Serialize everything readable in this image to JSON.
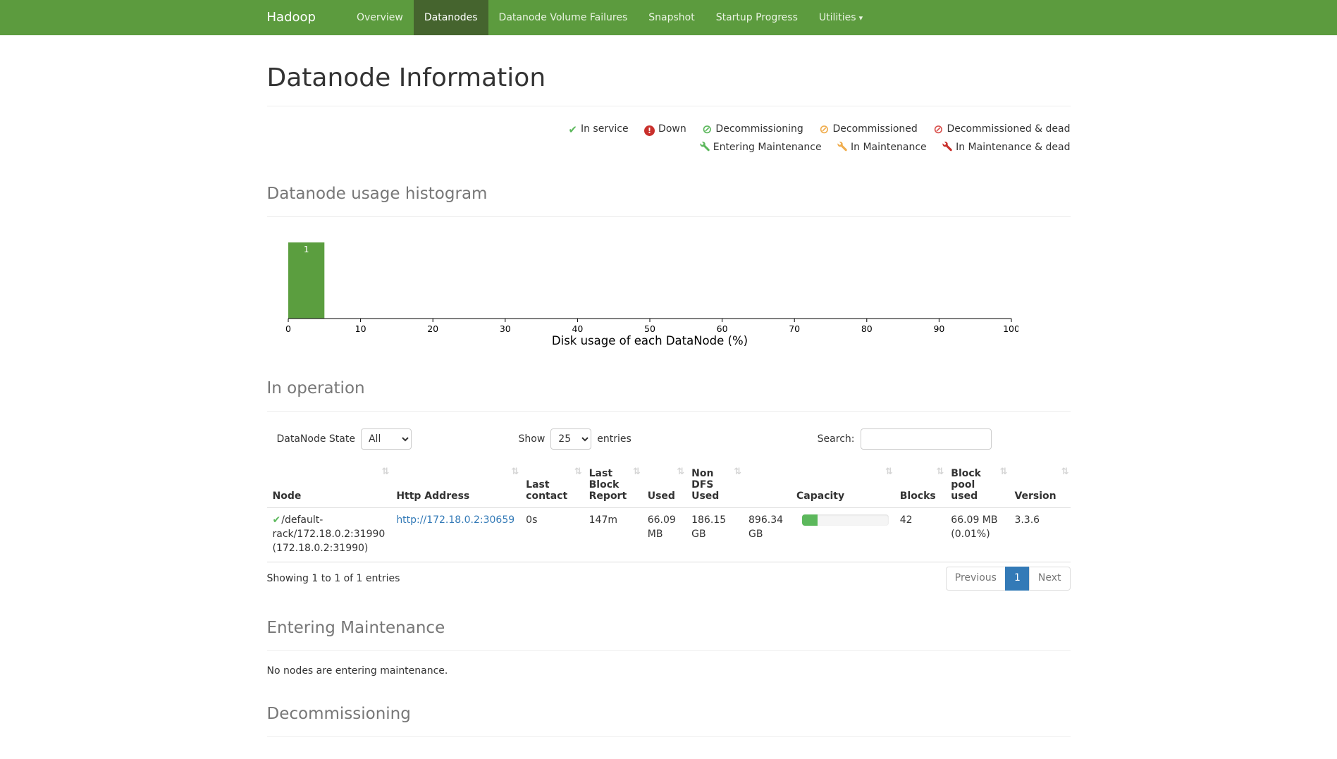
{
  "colors": {
    "navbar_bg": "#5c9b3e",
    "navbar_active_bg": "#45642e",
    "link": "#337ab7",
    "status_green": "#5cb85c",
    "status_orange": "#f0ad4e",
    "status_red": "#d9534f",
    "status_crimson": "#c9302c",
    "bar_green": "#5b9e3f"
  },
  "icons": {
    "check": "✔",
    "caret": "▾",
    "banned": "⊘",
    "sort": "⇅",
    "exclamation": "!"
  },
  "navbar": {
    "brand": "Hadoop",
    "items": [
      {
        "label": "Overview"
      },
      {
        "label": "Datanodes",
        "active": true
      },
      {
        "label": "Datanode Volume Failures"
      },
      {
        "label": "Snapshot"
      },
      {
        "label": "Startup Progress"
      },
      {
        "label": "Utilities",
        "dropdown": true
      }
    ]
  },
  "page": {
    "title": "Datanode Information"
  },
  "legend": {
    "row1": [
      {
        "icon": "check",
        "label": "In service"
      },
      {
        "icon": "exclamation-circle",
        "label": "Down"
      },
      {
        "icon": "banned-circle-green",
        "label": "Decommissioning"
      },
      {
        "icon": "banned-circle-orange",
        "label": "Decommissioned"
      },
      {
        "icon": "banned-circle-red",
        "label": "Decommissioned & dead"
      }
    ],
    "row2": [
      {
        "icon": "wrench-green",
        "label": "Entering Maintenance"
      },
      {
        "icon": "wrench-orange",
        "label": "In Maintenance"
      },
      {
        "icon": "wrench-red",
        "label": "In Maintenance & dead"
      }
    ]
  },
  "histogram_section": {
    "heading": "Datanode usage histogram"
  },
  "chart_data": {
    "type": "bar",
    "title": "Datanode usage histogram",
    "xlabel": "Disk usage of each DataNode (%)",
    "ylabel": "",
    "xlim": [
      0,
      100
    ],
    "ylim": [
      0,
      1
    ],
    "x_ticks": [
      0,
      10,
      20,
      30,
      40,
      50,
      60,
      70,
      80,
      90,
      100
    ],
    "bins": [
      {
        "range": [
          0,
          5
        ],
        "count": 1
      }
    ],
    "bar_color": "#5b9e3f",
    "grid": false
  },
  "operation": {
    "heading": "In operation",
    "controls": {
      "state_label": "DataNode State",
      "state_value": "All",
      "show_label": "Show",
      "show_value": "25",
      "entries_label": "entries",
      "search_label": "Search:",
      "search_value": ""
    },
    "table": {
      "columns": [
        "Node",
        "Http Address",
        "Last contact",
        "Last Block Report",
        "Used",
        "Non DFS Used",
        "Capacity",
        "Blocks",
        "Block pool used",
        "Version"
      ],
      "rows": [
        {
          "node": "/default-rack/172.18.0.2:31990 (172.18.0.2:31990)",
          "http_address": "http://172.18.0.2:30659",
          "last_contact": "0s",
          "last_block_report": "147m",
          "used": "66.09 MB",
          "non_dfs_used": "186.15 GB",
          "capacity": "896.34 GB",
          "capacity_used_pct": 18,
          "blocks": "42",
          "block_pool_used": "66.09 MB (0.01%)",
          "version": "3.3.6"
        }
      ]
    },
    "footer": {
      "info": "Showing 1 to 1 of 1 entries",
      "pagination": {
        "previous": "Previous",
        "page": "1",
        "next": "Next"
      }
    }
  },
  "entering_maintenance": {
    "heading": "Entering Maintenance",
    "empty_text": "No nodes are entering maintenance."
  },
  "decommissioning": {
    "heading": "Decommissioning"
  }
}
